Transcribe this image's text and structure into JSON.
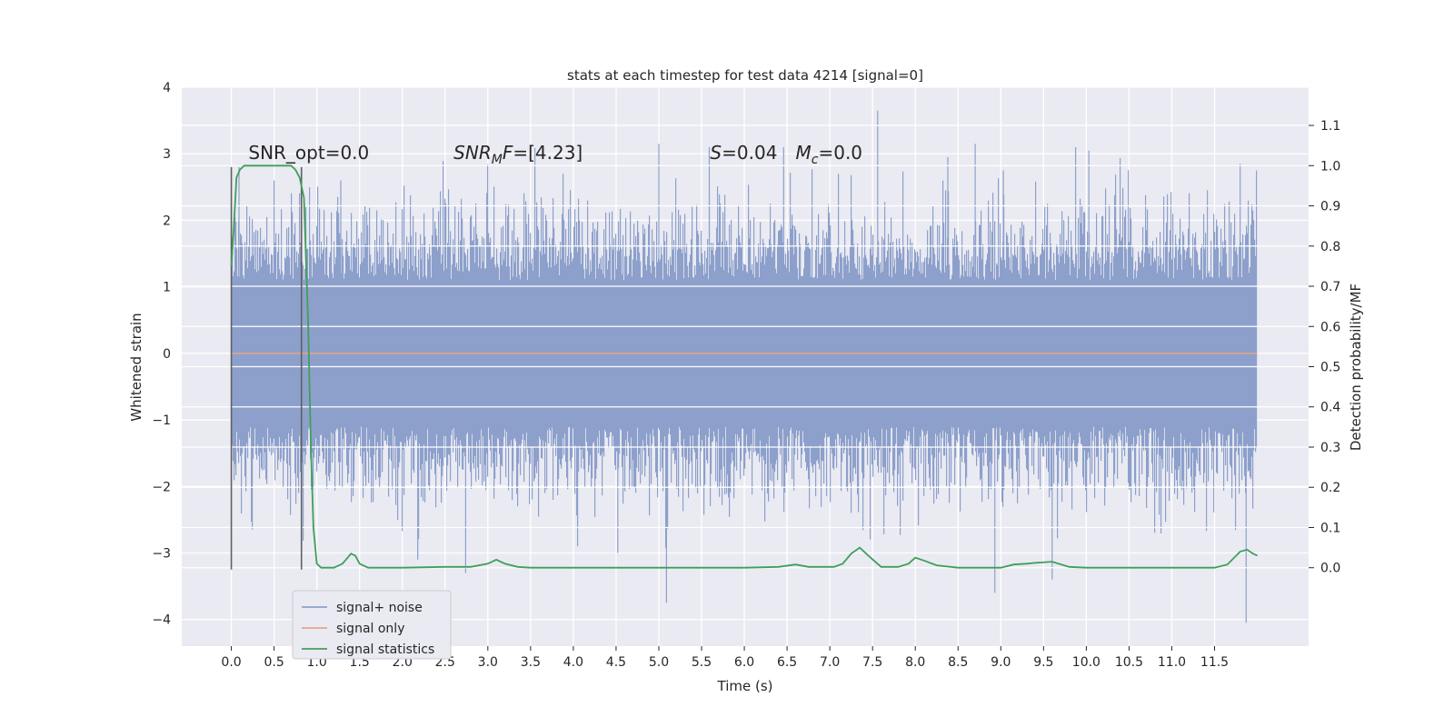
{
  "chart_data": {
    "type": "line",
    "title": "stats at each timestep for test data 4214 [signal=0]",
    "xlabel": "Time (s)",
    "ylabel_left": "Whitened strain",
    "ylabel_right": "Detection probability/MF",
    "xlim": [
      -0.58,
      12.6
    ],
    "ylim_left": [
      -4.4,
      4.0
    ],
    "ylim_right": [
      -0.195,
      1.195
    ],
    "x_ticks": [
      0.0,
      0.5,
      1.0,
      1.5,
      2.0,
      2.5,
      3.0,
      3.5,
      4.0,
      4.5,
      5.0,
      5.5,
      6.0,
      6.5,
      7.0,
      7.5,
      8.0,
      8.5,
      9.0,
      9.5,
      10.0,
      10.5,
      11.0,
      11.5
    ],
    "x_tick_labels": [
      "0.0",
      "0.5",
      "1.0",
      "1.5",
      "2.0",
      "2.5",
      "3.0",
      "3.5",
      "4.0",
      "4.5",
      "5.0",
      "5.5",
      "6.0",
      "6.5",
      "7.0",
      "7.5",
      "8.0",
      "8.5",
      "9.0",
      "9.5",
      "10.0",
      "10.5",
      "11.0",
      "11.5"
    ],
    "y_left_ticks": [
      4,
      3,
      2,
      1,
      0,
      -1,
      -2,
      -3,
      -4
    ],
    "y_left_tick_labels": [
      "4",
      "3",
      "2",
      "1",
      "0",
      "−1",
      "−2",
      "−3",
      "−4"
    ],
    "y_right_ticks": [
      1.1,
      1.0,
      0.9,
      0.8,
      0.7,
      0.6,
      0.5,
      0.4,
      0.3,
      0.2,
      0.1,
      0.0
    ],
    "y_right_tick_labels": [
      "1.1",
      "1.0",
      "0.9",
      "0.8",
      "0.7",
      "0.6",
      "0.5",
      "0.4",
      "0.3",
      "0.2",
      "0.1",
      "0.0"
    ],
    "grid": true,
    "legend_position": "lower-left",
    "series": [
      {
        "name": "signal+ noise",
        "color": "#8da0cb",
        "kind": "noise",
        "x_range": [
          0.0,
          12.0
        ],
        "amplitude_typical": 1.6,
        "peak_values": [
          [
            0.09,
            2.8
          ],
          [
            0.5,
            2.6
          ],
          [
            1.28,
            2.6
          ],
          [
            2.18,
            -3.1
          ],
          [
            2.74,
            -3.3
          ],
          [
            3.88,
            2.7
          ],
          [
            4.05,
            -2.9
          ],
          [
            4.52,
            -3.0
          ],
          [
            5.0,
            3.15
          ],
          [
            5.09,
            -3.75
          ],
          [
            5.59,
            3.1
          ],
          [
            6.46,
            3.1
          ],
          [
            7.56,
            3.65
          ],
          [
            8.38,
            2.95
          ],
          [
            8.7,
            3.15
          ],
          [
            8.93,
            -3.6
          ],
          [
            9.03,
            2.75
          ],
          [
            9.6,
            -3.4
          ],
          [
            10.03,
            3.05
          ],
          [
            11.8,
            2.85
          ],
          [
            11.87,
            -4.05
          ],
          [
            11.99,
            2.75
          ]
        ]
      },
      {
        "name": "signal only",
        "color": "#e8a48a",
        "x": [
          0.0,
          12.0
        ],
        "y": [
          0.0,
          0.0
        ]
      },
      {
        "name": "signal statistics",
        "color": "#3f9f5b",
        "axis": "right",
        "x": [
          0.0,
          0.03,
          0.06,
          0.1,
          0.15,
          0.2,
          0.3,
          0.4,
          0.5,
          0.6,
          0.65,
          0.7,
          0.75,
          0.8,
          0.85,
          0.9,
          0.93,
          0.96,
          1.0,
          1.05,
          1.1,
          1.2,
          1.3,
          1.4,
          1.45,
          1.5,
          1.6,
          2.0,
          2.5,
          2.8,
          3.0,
          3.1,
          3.2,
          3.35,
          3.5,
          4.0,
          5.0,
          6.0,
          6.4,
          6.6,
          6.75,
          7.05,
          7.15,
          7.25,
          7.35,
          7.45,
          7.6,
          7.8,
          7.92,
          8.0,
          8.1,
          8.25,
          8.5,
          8.8,
          9.0,
          9.15,
          9.3,
          9.4,
          9.6,
          9.8,
          10.0,
          10.5,
          11.0,
          11.5,
          11.65,
          11.8,
          11.88,
          11.95,
          12.0
        ],
        "y": [
          0.75,
          0.85,
          0.97,
          0.99,
          1.0,
          1.0,
          1.0,
          1.0,
          1.0,
          1.0,
          1.0,
          1.0,
          0.99,
          0.97,
          0.92,
          0.6,
          0.3,
          0.1,
          0.01,
          0.0,
          0.0,
          0.0,
          0.01,
          0.035,
          0.03,
          0.01,
          0.0,
          0.0,
          0.002,
          0.002,
          0.01,
          0.02,
          0.01,
          0.002,
          0.0,
          0.0,
          0.0,
          0.0,
          0.002,
          0.008,
          0.002,
          0.002,
          0.01,
          0.035,
          0.05,
          0.03,
          0.002,
          0.002,
          0.01,
          0.025,
          0.018,
          0.006,
          0.0,
          0.0,
          0.0,
          0.008,
          0.01,
          0.012,
          0.015,
          0.002,
          0.0,
          0.0,
          0.0,
          0.0,
          0.008,
          0.04,
          0.045,
          0.035,
          0.03
        ]
      }
    ],
    "vertical_markers": [
      {
        "x": 0.0,
        "y_from": -3.25,
        "y_to": 2.8,
        "color": "#606060"
      },
      {
        "x": 0.82,
        "y_from": -3.25,
        "y_to": 2.8,
        "color": "#606060"
      }
    ],
    "annotations": [
      {
        "key": "snr_opt",
        "text": "SNR_opt=0.0",
        "x": 0.2,
        "y": 2.92
      },
      {
        "key": "snr_mf",
        "text": "SNR_MF=[4.23]",
        "x": 2.6,
        "y": 2.92
      },
      {
        "key": "s",
        "text": "S=0.04",
        "x": 5.6,
        "y": 2.92
      },
      {
        "key": "mc",
        "text": "M_c=0.0",
        "x": 6.6,
        "y": 2.92
      }
    ]
  }
}
